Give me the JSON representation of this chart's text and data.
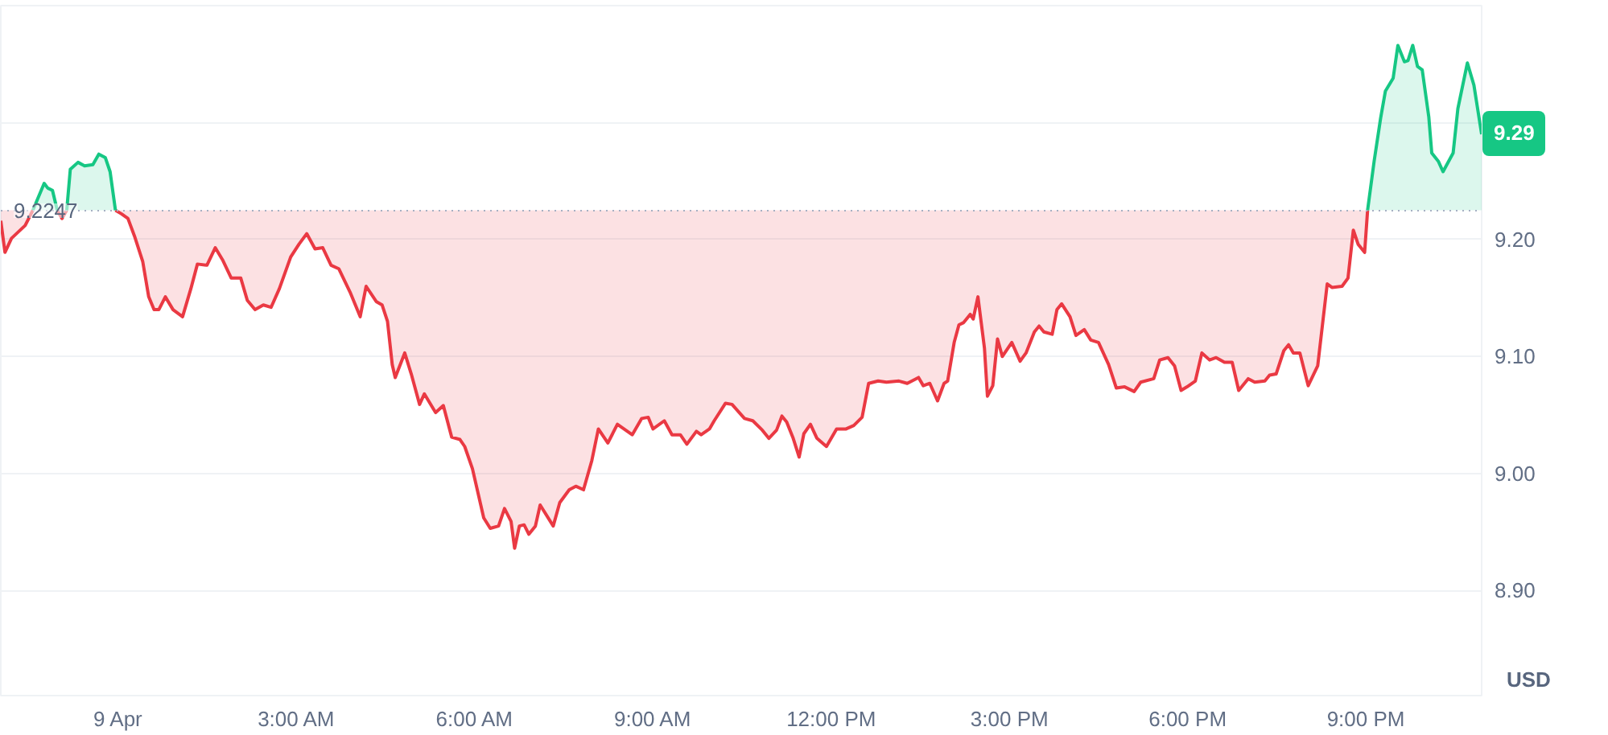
{
  "chart_data": {
    "type": "line",
    "series": [
      {
        "color": "#ea3943",
        "x": [
          -1.98,
          -1.91,
          -1.8,
          -1.57,
          -1.44,
          -1.25,
          -1.19,
          -1.11,
          -1.03,
          -0.95,
          -0.87,
          -0.81,
          -0.68,
          -0.57,
          -0.43,
          -0.33,
          -0.22,
          -0.14,
          -0.05,
          0.05,
          0.16,
          0.27,
          0.41,
          0.51,
          0.6,
          0.68,
          0.79,
          0.92,
          1.08,
          1.22,
          1.33,
          1.49,
          1.63,
          1.76,
          1.9,
          2.06,
          2.17,
          2.3,
          2.44,
          2.57,
          2.71,
          2.9,
          3.04,
          3.17,
          3.31,
          3.44,
          3.58,
          3.71,
          3.9,
          4.07,
          4.17,
          4.34,
          4.44,
          4.53,
          4.61,
          4.66,
          4.82,
          4.93,
          5.07,
          5.15,
          5.34,
          5.47,
          5.61,
          5.75,
          5.83,
          5.96,
          6.15,
          6.26,
          6.4,
          6.5,
          6.61,
          6.67,
          6.75,
          6.83,
          6.91,
          7.02,
          7.1,
          7.32,
          7.43,
          7.59,
          7.7,
          7.83,
          7.97,
          8.08,
          8.24,
          8.4,
          8.65,
          8.81,
          8.92,
          9.0,
          9.19,
          9.32,
          9.46,
          9.57,
          9.73,
          9.81,
          9.95,
          10.03,
          10.22,
          10.33,
          10.54,
          10.68,
          10.84,
          10.95,
          11.08,
          11.17,
          11.25,
          11.36,
          11.46,
          11.54,
          11.65,
          11.76,
          11.92,
          12.09,
          12.25,
          12.38,
          12.52,
          12.63,
          12.79,
          12.93,
          13.14,
          13.28,
          13.47,
          13.55,
          13.66,
          13.79,
          13.9,
          13.96,
          14.07,
          14.15,
          14.23,
          14.34,
          14.39,
          14.47,
          14.58,
          14.63,
          14.72,
          14.8,
          14.88,
          15.04,
          15.18,
          15.28,
          15.42,
          15.5,
          15.58,
          15.72,
          15.8,
          15.88,
          16.02,
          16.12,
          16.26,
          16.37,
          16.5,
          16.67,
          16.8,
          16.94,
          17.1,
          17.21,
          17.43,
          17.53,
          17.67,
          17.78,
          17.89,
          17.99,
          18.13,
          18.24,
          18.37,
          18.48,
          18.62,
          18.75,
          18.86,
          19.02,
          19.13,
          19.3,
          19.38,
          19.49,
          19.62,
          19.7,
          19.78,
          19.89,
          20.03,
          20.19,
          20.35,
          20.43,
          20.6,
          20.7,
          20.79,
          20.87,
          20.98,
          21.03
        ],
        "values": [
          9.216,
          9.189,
          9.201,
          9.212,
          9.225,
          null,
          null,
          null,
          9.225,
          9.218,
          9.225,
          null,
          null,
          null,
          null,
          null,
          null,
          null,
          9.225,
          9.222,
          9.218,
          9.203,
          9.181,
          9.151,
          9.14,
          9.14,
          9.151,
          9.14,
          9.134,
          9.158,
          9.179,
          9.178,
          9.193,
          9.182,
          9.167,
          9.167,
          9.148,
          9.14,
          9.144,
          9.142,
          9.158,
          9.185,
          9.196,
          9.205,
          9.192,
          9.193,
          9.178,
          9.175,
          9.155,
          9.134,
          9.16,
          9.147,
          9.144,
          9.13,
          9.093,
          9.082,
          9.103,
          9.085,
          9.059,
          9.068,
          9.052,
          9.058,
          9.031,
          9.029,
          9.023,
          9.004,
          8.962,
          8.953,
          8.955,
          8.97,
          8.959,
          8.936,
          8.955,
          8.956,
          8.948,
          8.955,
          8.973,
          8.955,
          8.975,
          8.986,
          8.989,
          8.986,
          9.011,
          9.038,
          9.026,
          9.042,
          9.033,
          9.047,
          9.048,
          9.038,
          9.045,
          9.033,
          9.033,
          9.025,
          9.036,
          9.033,
          9.038,
          9.045,
          9.06,
          9.059,
          9.047,
          9.045,
          9.037,
          9.03,
          9.037,
          9.049,
          9.044,
          9.03,
          9.014,
          9.034,
          9.042,
          9.03,
          9.023,
          9.038,
          9.038,
          9.041,
          9.048,
          9.077,
          9.079,
          9.078,
          9.079,
          9.077,
          9.082,
          9.075,
          9.077,
          9.062,
          9.077,
          9.079,
          9.112,
          9.127,
          9.129,
          9.136,
          9.132,
          9.151,
          9.107,
          9.066,
          9.075,
          9.115,
          9.1,
          9.112,
          9.096,
          9.103,
          9.121,
          9.126,
          9.121,
          9.119,
          9.14,
          9.145,
          9.134,
          9.118,
          9.123,
          9.114,
          9.112,
          9.093,
          9.073,
          9.074,
          9.07,
          9.078,
          9.081,
          9.097,
          9.099,
          9.092,
          9.071,
          9.074,
          9.079,
          9.103,
          9.097,
          9.099,
          9.095,
          9.095,
          9.071,
          9.081,
          9.078,
          9.079,
          9.084,
          9.085,
          9.105,
          9.11,
          9.103,
          9.103,
          9.075,
          9.092,
          9.162,
          9.159,
          9.16,
          9.167,
          9.208,
          9.196,
          9.189,
          9.225
        ],
        "lower": [
          9.216,
          9.189,
          9.201,
          9.212,
          9.225,
          null,
          null,
          null,
          9.225,
          9.218,
          9.225,
          null,
          null,
          null,
          null,
          null,
          null,
          null,
          9.225,
          9.222,
          9.218,
          9.203,
          9.181,
          9.151,
          9.14,
          9.14,
          9.151,
          9.14,
          9.134,
          9.158,
          9.179,
          9.178,
          9.193,
          9.182,
          9.167,
          9.167,
          9.148,
          9.14,
          9.144,
          9.142,
          9.158,
          9.185,
          9.196,
          9.205,
          9.192,
          9.193,
          9.178,
          9.175,
          9.155,
          9.134,
          9.16,
          9.147,
          9.144,
          9.13,
          9.093,
          9.082,
          9.103,
          9.085,
          9.059,
          9.068,
          9.052,
          9.058,
          9.031,
          9.029,
          9.023,
          9.004,
          8.962,
          8.953,
          8.955,
          8.97,
          8.959,
          8.936,
          8.955,
          8.956,
          8.948,
          8.955,
          8.973,
          8.955,
          8.975,
          8.986,
          8.989,
          8.986,
          9.011,
          9.038,
          9.026,
          9.042,
          9.033,
          9.047,
          9.048,
          9.038,
          9.045,
          9.033,
          9.033,
          9.025,
          9.036,
          9.033,
          9.038,
          9.045,
          9.06,
          9.059,
          9.047,
          9.045,
          9.037,
          9.03,
          9.037,
          9.049,
          9.044,
          9.03,
          9.014,
          9.034,
          9.042,
          9.03,
          9.023,
          9.038,
          9.038,
          9.041,
          9.048,
          9.077,
          9.079,
          9.078,
          9.079,
          9.077,
          9.082,
          9.075,
          9.077,
          9.062,
          9.077,
          9.079,
          9.112,
          9.127,
          9.129,
          9.136,
          9.132,
          9.151,
          9.107,
          9.066,
          9.075,
          9.115,
          9.1,
          9.112,
          9.096,
          9.103,
          9.121,
          9.126,
          9.121,
          9.119,
          9.14,
          9.145,
          9.134,
          9.118,
          9.123,
          9.114,
          9.112,
          9.093,
          9.073,
          9.074,
          9.07,
          9.078,
          9.081,
          9.097,
          9.099,
          9.092,
          9.071,
          9.074,
          9.079,
          9.103,
          9.097,
          9.099,
          9.095,
          9.095,
          9.071,
          9.081,
          9.078,
          9.079,
          9.084,
          9.085,
          9.105,
          9.11,
          9.103,
          9.103,
          9.075,
          9.092,
          9.162,
          9.159,
          9.16,
          9.167,
          9.208,
          9.196,
          9.189,
          9.225
        ],
        "upper": [
          9.225,
          9.225,
          9.225,
          9.225,
          9.225,
          null,
          null,
          null,
          9.225,
          9.225,
          9.225,
          null,
          null,
          null,
          null,
          null,
          null,
          null,
          9.225,
          9.225,
          9.225,
          9.225,
          9.225,
          9.225,
          9.225,
          9.225,
          9.225,
          9.225,
          9.225,
          9.225,
          9.225,
          9.225,
          9.225,
          9.225,
          9.225,
          9.225,
          9.225,
          9.225,
          9.225,
          9.225,
          9.225,
          9.225,
          9.225,
          9.225,
          9.225,
          9.225,
          9.225,
          9.225,
          9.225,
          9.225,
          9.225,
          9.225,
          9.225,
          9.225,
          9.225,
          9.225,
          9.225,
          9.225,
          9.225,
          9.225,
          9.225,
          9.225,
          9.225,
          9.225,
          9.225,
          9.225,
          9.225,
          9.225,
          9.225,
          9.225,
          9.225,
          9.225,
          9.225,
          9.225,
          9.225,
          9.225,
          9.225,
          9.225,
          9.225,
          9.225,
          9.225,
          9.225,
          9.225,
          9.225,
          9.225,
          9.225,
          9.225,
          9.225,
          9.225,
          9.225,
          9.225,
          9.225,
          9.225,
          9.225,
          9.225,
          9.225,
          9.225,
          9.225,
          9.225,
          9.225,
          9.225,
          9.225,
          9.225,
          9.225,
          9.225,
          9.225,
          9.225,
          9.225,
          9.225,
          9.225,
          9.225,
          9.225,
          9.225,
          9.225,
          9.225,
          9.225,
          9.225,
          9.225,
          9.225,
          9.225,
          9.225,
          9.225,
          9.225,
          9.225,
          9.225,
          9.225,
          9.225,
          9.225,
          9.225,
          9.225,
          9.225,
          9.225,
          9.225,
          9.225,
          9.225,
          9.225,
          9.225,
          9.225,
          9.225,
          9.225,
          9.225,
          9.225,
          9.225,
          9.225,
          9.225,
          9.225,
          9.225,
          9.225,
          9.225,
          9.225,
          9.225,
          9.225,
          9.225,
          9.225,
          9.225,
          9.225,
          9.225,
          9.225,
          9.225,
          9.225,
          9.225,
          9.225,
          9.225,
          9.225,
          9.225,
          9.225,
          9.225,
          9.225,
          9.225,
          9.225,
          9.225,
          9.225,
          9.225,
          9.225,
          9.225,
          9.225,
          9.225,
          9.225,
          9.225,
          9.225,
          9.225,
          9.225,
          9.225,
          9.225,
          9.225,
          9.225,
          9.225,
          9.225,
          9.225,
          9.225
        ]
      },
      {
        "color": "#16c784",
        "x": [
          -1.44,
          -1.25,
          -1.19,
          -1.11,
          -1.03,
          -0.95,
          -0.87,
          -0.81,
          -0.68,
          -0.57,
          -0.43,
          -0.33,
          -0.22,
          -0.14,
          -0.05,
          0.05,
          21.03,
          21.14,
          21.25,
          21.33,
          21.46,
          21.54,
          21.65,
          21.71,
          21.79,
          21.87,
          21.95,
          22.06,
          22.11,
          22.22,
          22.3,
          22.47,
          22.55,
          22.71,
          22.82,
          22.95
        ],
        "values": [
          9.225,
          9.248,
          9.244,
          9.242,
          9.225,
          null,
          9.225,
          9.26,
          9.266,
          9.263,
          9.264,
          9.273,
          9.27,
          9.258,
          9.225,
          null,
          9.225,
          9.267,
          9.304,
          9.327,
          9.338,
          9.366,
          9.352,
          9.353,
          9.366,
          9.348,
          9.345,
          9.305,
          9.274,
          9.267,
          9.258,
          9.274,
          9.312,
          9.351,
          9.332,
          9.29
        ],
        "lower": [
          9.225,
          9.225,
          9.225,
          9.225,
          9.225,
          null,
          9.225,
          9.225,
          9.225,
          9.225,
          9.225,
          9.225,
          9.225,
          9.225,
          9.225,
          null,
          9.225,
          9.225,
          9.225,
          9.225,
          9.225,
          9.225,
          9.225,
          9.225,
          9.225,
          9.225,
          9.225,
          9.225,
          9.225,
          9.225,
          9.225,
          9.225,
          9.225,
          9.225,
          9.225,
          9.225
        ],
        "upper": [
          9.225,
          9.248,
          9.244,
          9.242,
          9.225,
          null,
          9.225,
          9.26,
          9.266,
          9.263,
          9.264,
          9.273,
          9.27,
          9.258,
          9.225,
          null,
          9.225,
          9.267,
          9.304,
          9.327,
          9.338,
          9.366,
          9.352,
          9.353,
          9.366,
          9.348,
          9.345,
          9.305,
          9.274,
          9.267,
          9.258,
          9.274,
          9.312,
          9.351,
          9.332,
          9.29
        ]
      }
    ],
    "xlim": [
      -1.98,
      22.95
    ],
    "xticks": [
      {
        "value": 0,
        "label": "9 Apr"
      },
      {
        "value": 3,
        "label": "3:00 AM"
      },
      {
        "value": 6,
        "label": "6:00 AM"
      },
      {
        "value": 9,
        "label": "9:00 AM"
      },
      {
        "value": 12,
        "label": "12:00 PM"
      },
      {
        "value": 15,
        "label": "3:00 PM"
      },
      {
        "value": 18,
        "label": "6:00 PM"
      },
      {
        "value": 21,
        "label": "9:00 PM"
      }
    ],
    "ylim": [
      8.81,
      9.4
    ],
    "yticks": [
      {
        "value": 8.9,
        "label": "8.90"
      },
      {
        "value": 9.0,
        "label": "9.00"
      },
      {
        "value": 9.1,
        "label": "9.10"
      },
      {
        "value": 9.2,
        "label": "9.20"
      },
      {
        "value": 9.3,
        "label": null
      }
    ],
    "ylabel": "USD",
    "ref_lines": [
      {
        "axis": "y",
        "value": 9.2247,
        "label": "9.2247",
        "color": "#a6b0c3",
        "line_style": "dotted"
      }
    ],
    "annotations": [
      {
        "text": "9.29",
        "x": 22.95,
        "y": 9.29
      }
    ],
    "grid": "y"
  }
}
